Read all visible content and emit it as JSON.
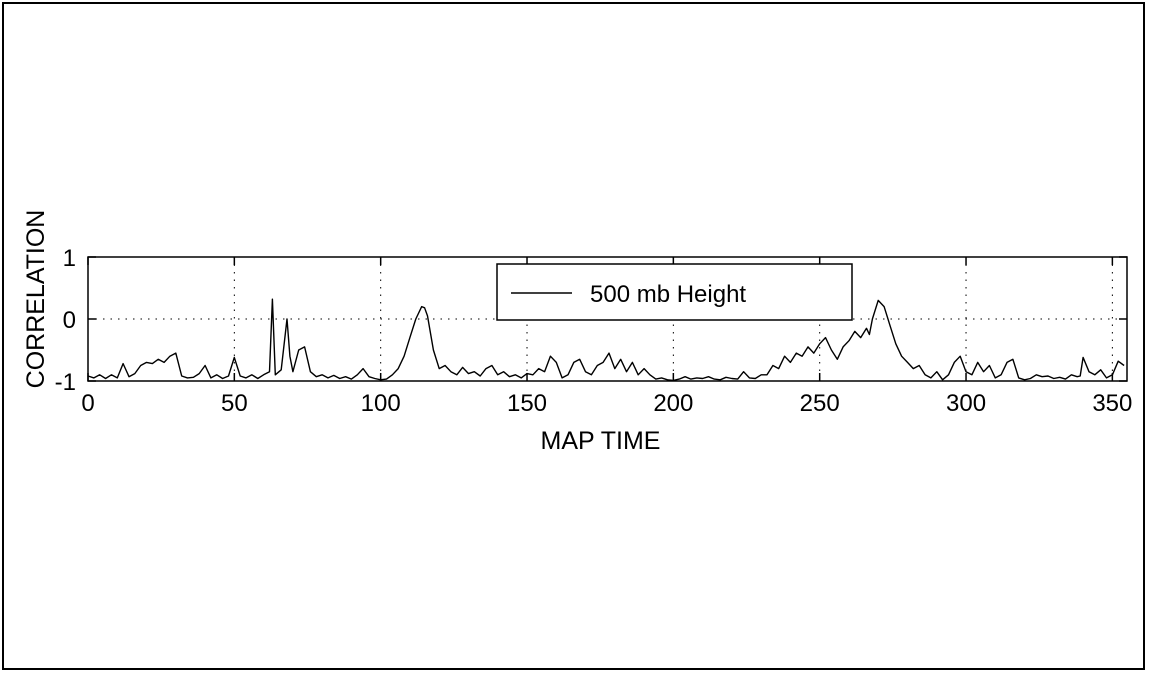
{
  "chart_data": {
    "type": "line",
    "title": "",
    "xlabel": "MAP TIME",
    "ylabel": "CORRELATION",
    "xlim": [
      0,
      355
    ],
    "ylim": [
      -1,
      1
    ],
    "xticks": [
      0,
      50,
      100,
      150,
      200,
      250,
      300,
      350
    ],
    "yticks": [
      -1,
      0,
      1
    ],
    "grid": "dotted",
    "legend_position": "top-center",
    "series": [
      {
        "name": "500 mb Height",
        "color": "#000000",
        "x": [
          0,
          2,
          4,
          6,
          8,
          10,
          12,
          14,
          16,
          18,
          20,
          22,
          24,
          26,
          28,
          30,
          32,
          34,
          36,
          38,
          40,
          42,
          44,
          46,
          48,
          50,
          52,
          54,
          56,
          58,
          60,
          62,
          63,
          64,
          66,
          68,
          69,
          70,
          72,
          74,
          76,
          78,
          80,
          82,
          84,
          86,
          88,
          90,
          92,
          94,
          96,
          98,
          100,
          102,
          104,
          106,
          108,
          110,
          112,
          114,
          115,
          116,
          118,
          120,
          122,
          124,
          126,
          128,
          130,
          132,
          134,
          136,
          138,
          140,
          142,
          144,
          146,
          148,
          150,
          152,
          154,
          156,
          158,
          160,
          162,
          164,
          166,
          168,
          170,
          172,
          174,
          176,
          178,
          180,
          182,
          184,
          186,
          188,
          190,
          192,
          194,
          196,
          198,
          200,
          202,
          204,
          206,
          208,
          210,
          212,
          214,
          216,
          218,
          220,
          222,
          224,
          226,
          228,
          230,
          232,
          234,
          236,
          238,
          240,
          242,
          244,
          246,
          248,
          250,
          252,
          254,
          256,
          258,
          260,
          262,
          264,
          266,
          267,
          268,
          270,
          272,
          274,
          276,
          278,
          280,
          282,
          284,
          286,
          288,
          290,
          292,
          294,
          296,
          298,
          300,
          302,
          304,
          306,
          308,
          310,
          312,
          314,
          316,
          318,
          320,
          322,
          324,
          326,
          328,
          330,
          332,
          334,
          336,
          338,
          339,
          340,
          342,
          344,
          346,
          348,
          350,
          352,
          354
        ],
        "y": [
          -0.92,
          -0.95,
          -0.9,
          -0.96,
          -0.9,
          -0.95,
          -0.72,
          -0.93,
          -0.88,
          -0.75,
          -0.7,
          -0.72,
          -0.65,
          -0.7,
          -0.6,
          -0.55,
          -0.92,
          -0.95,
          -0.94,
          -0.88,
          -0.75,
          -0.95,
          -0.9,
          -0.96,
          -0.92,
          -0.62,
          -0.92,
          -0.95,
          -0.9,
          -0.96,
          -0.9,
          -0.85,
          0.32,
          -0.9,
          -0.82,
          0.0,
          -0.6,
          -0.85,
          -0.5,
          -0.45,
          -0.85,
          -0.93,
          -0.9,
          -0.95,
          -0.91,
          -0.96,
          -0.93,
          -0.97,
          -0.9,
          -0.8,
          -0.93,
          -0.96,
          -0.98,
          -0.97,
          -0.9,
          -0.8,
          -0.6,
          -0.3,
          0.0,
          0.2,
          0.18,
          0.05,
          -0.5,
          -0.8,
          -0.75,
          -0.85,
          -0.9,
          -0.78,
          -0.88,
          -0.85,
          -0.92,
          -0.8,
          -0.75,
          -0.9,
          -0.85,
          -0.93,
          -0.9,
          -0.95,
          -0.88,
          -0.9,
          -0.8,
          -0.85,
          -0.6,
          -0.7,
          -0.95,
          -0.9,
          -0.7,
          -0.65,
          -0.85,
          -0.9,
          -0.75,
          -0.7,
          -0.55,
          -0.8,
          -0.65,
          -0.85,
          -0.7,
          -0.9,
          -0.8,
          -0.9,
          -0.97,
          -0.95,
          -0.98,
          -0.99,
          -0.97,
          -0.93,
          -0.97,
          -0.95,
          -0.96,
          -0.93,
          -0.97,
          -0.98,
          -0.94,
          -0.96,
          -0.97,
          -0.85,
          -0.95,
          -0.96,
          -0.9,
          -0.9,
          -0.75,
          -0.8,
          -0.6,
          -0.7,
          -0.55,
          -0.6,
          -0.45,
          -0.55,
          -0.4,
          -0.3,
          -0.5,
          -0.65,
          -0.45,
          -0.35,
          -0.2,
          -0.3,
          -0.15,
          -0.25,
          0.0,
          0.3,
          0.2,
          -0.1,
          -0.4,
          -0.6,
          -0.7,
          -0.8,
          -0.75,
          -0.9,
          -0.95,
          -0.85,
          -0.98,
          -0.9,
          -0.7,
          -0.6,
          -0.85,
          -0.9,
          -0.7,
          -0.85,
          -0.75,
          -0.95,
          -0.9,
          -0.7,
          -0.65,
          -0.95,
          -0.98,
          -0.96,
          -0.9,
          -0.93,
          -0.92,
          -0.96,
          -0.94,
          -0.97,
          -0.9,
          -0.93,
          -0.92,
          -0.62,
          -0.85,
          -0.9,
          -0.82,
          -0.95,
          -0.9,
          -0.68,
          -0.75
        ]
      }
    ]
  }
}
